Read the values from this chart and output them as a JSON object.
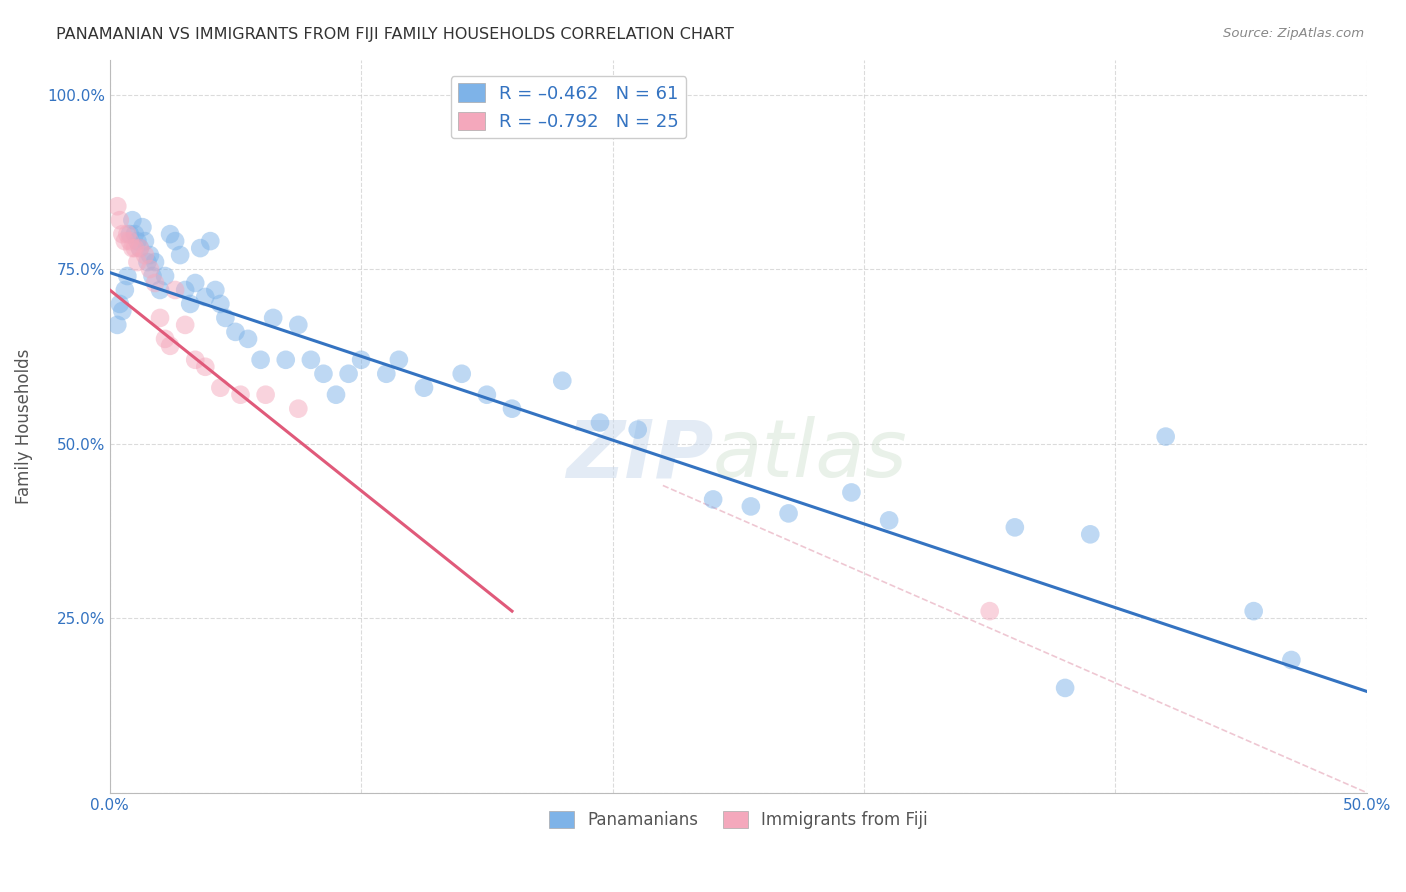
{
  "title": "PANAMANIAN VS IMMIGRANTS FROM FIJI FAMILY HOUSEHOLDS CORRELATION CHART",
  "source": "Source: ZipAtlas.com",
  "ylabel": "Family Households",
  "xlim": [
    0.0,
    0.5
  ],
  "ylim": [
    0.0,
    1.05
  ],
  "blue_color": "#7EB3E8",
  "pink_color": "#F4A8BC",
  "blue_line_color": "#3473C1",
  "pink_line_color": "#E05A7A",
  "text_color": "#3473C1",
  "title_color": "#333333",
  "grid_color": "#CCCCCC",
  "watermark_zip": "ZIP",
  "watermark_atlas": "atlas",
  "blue_scatter_x": [
    0.003,
    0.004,
    0.005,
    0.006,
    0.007,
    0.008,
    0.009,
    0.01,
    0.011,
    0.012,
    0.013,
    0.014,
    0.015,
    0.016,
    0.017,
    0.018,
    0.02,
    0.022,
    0.024,
    0.026,
    0.028,
    0.03,
    0.032,
    0.034,
    0.036,
    0.038,
    0.04,
    0.042,
    0.044,
    0.046,
    0.05,
    0.055,
    0.06,
    0.065,
    0.07,
    0.075,
    0.08,
    0.085,
    0.09,
    0.095,
    0.1,
    0.11,
    0.115,
    0.125,
    0.14,
    0.15,
    0.16,
    0.18,
    0.195,
    0.21,
    0.24,
    0.255,
    0.27,
    0.295,
    0.31,
    0.36,
    0.39,
    0.42,
    0.455,
    0.47,
    0.38
  ],
  "blue_scatter_y": [
    0.67,
    0.7,
    0.69,
    0.72,
    0.74,
    0.8,
    0.82,
    0.8,
    0.79,
    0.78,
    0.81,
    0.79,
    0.76,
    0.77,
    0.74,
    0.76,
    0.72,
    0.74,
    0.8,
    0.79,
    0.77,
    0.72,
    0.7,
    0.73,
    0.78,
    0.71,
    0.79,
    0.72,
    0.7,
    0.68,
    0.66,
    0.65,
    0.62,
    0.68,
    0.62,
    0.67,
    0.62,
    0.6,
    0.57,
    0.6,
    0.62,
    0.6,
    0.62,
    0.58,
    0.6,
    0.57,
    0.55,
    0.59,
    0.53,
    0.52,
    0.42,
    0.41,
    0.4,
    0.43,
    0.39,
    0.38,
    0.37,
    0.51,
    0.26,
    0.19,
    0.15
  ],
  "pink_scatter_x": [
    0.003,
    0.004,
    0.005,
    0.006,
    0.007,
    0.008,
    0.009,
    0.01,
    0.011,
    0.012,
    0.014,
    0.016,
    0.018,
    0.02,
    0.022,
    0.024,
    0.026,
    0.03,
    0.034,
    0.038,
    0.044,
    0.052,
    0.062,
    0.075,
    0.35
  ],
  "pink_scatter_y": [
    0.84,
    0.82,
    0.8,
    0.79,
    0.8,
    0.79,
    0.78,
    0.78,
    0.76,
    0.78,
    0.77,
    0.75,
    0.73,
    0.68,
    0.65,
    0.64,
    0.72,
    0.67,
    0.62,
    0.61,
    0.58,
    0.57,
    0.57,
    0.55,
    0.26
  ],
  "blue_trendline_x": [
    0.0,
    0.5
  ],
  "blue_trendline_y": [
    0.745,
    0.145
  ],
  "pink_trendline_x": [
    0.0,
    0.16
  ],
  "pink_trendline_y": [
    0.72,
    0.26
  ],
  "diagonal_line_x": [
    0.22,
    0.5
  ],
  "diagonal_line_y": [
    0.44,
    0.0
  ]
}
